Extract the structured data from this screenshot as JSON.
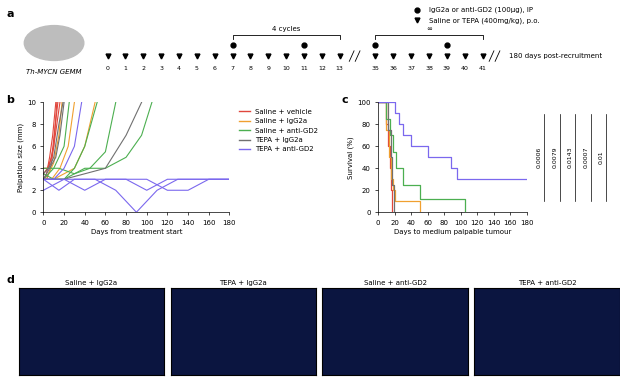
{
  "schematic": {
    "panel_label": "a",
    "model": "Th-MYCN GEMM",
    "cycle_label": "4 cycles",
    "repeat_label": "∞",
    "antibody_legend": "IgG2a or anti-GD2 (100µg), IP",
    "drug_legend": "Saline or TEPA (400mg/kg), p.o.",
    "drug_days_cycle": [
      0,
      1,
      2,
      3,
      4,
      5,
      6,
      7,
      8,
      9,
      10,
      11,
      12,
      13
    ],
    "drug_days_repeat": [
      35,
      36,
      37,
      38,
      39,
      40,
      41
    ],
    "antibody_days": [
      7,
      11,
      35,
      39
    ],
    "end_label": "180 days post-recruitment"
  },
  "chart_data": [
    {
      "type": "line",
      "panel_label": "b",
      "x_label": "Days from treatment start",
      "y_label": "Palpation size (mm)",
      "xlim": [
        0,
        180
      ],
      "xticks": [
        0,
        20,
        40,
        60,
        80,
        100,
        120,
        140,
        160,
        180
      ],
      "ylim": [
        0,
        10
      ],
      "yticks": [
        0,
        2,
        4,
        6,
        8,
        10
      ],
      "legend": "upper left",
      "series": [
        {
          "name": "Saline + vehicle",
          "color": "#e0463c",
          "mice": [
            {
              "x": [
                0,
                3,
                6,
                9,
                12
              ],
              "values": [
                3,
                3.5,
                5,
                7,
                10
              ]
            },
            {
              "x": [
                0,
                4,
                8,
                11,
                14
              ],
              "values": [
                3.5,
                4,
                5,
                7.5,
                10
              ]
            },
            {
              "x": [
                0,
                5,
                10,
                13,
                16
              ],
              "values": [
                4,
                4,
                6,
                8,
                10
              ]
            },
            {
              "x": [
                0,
                3,
                7,
                10,
                13
              ],
              "values": [
                3,
                3,
                4,
                6,
                10
              ]
            }
          ]
        },
        {
          "name": "Saline + IgG2a",
          "color": "#f0a030",
          "mice": [
            {
              "x": [
                0,
                5,
                10,
                15,
                18
              ],
              "values": [
                3,
                3.5,
                4.5,
                7,
                10
              ]
            },
            {
              "x": [
                0,
                8,
                16,
                24,
                30
              ],
              "values": [
                3,
                3,
                4,
                6,
                10
              ]
            },
            {
              "x": [
                0,
                10,
                20,
                30,
                40,
                50
              ],
              "values": [
                3,
                3,
                3.5,
                4,
                6,
                10
              ]
            }
          ]
        },
        {
          "name": "Saline + anti-GD2",
          "color": "#4caf50",
          "mice": [
            {
              "x": [
                0,
                10,
                20,
                30,
                40,
                52
              ],
              "values": [
                3.5,
                3,
                3,
                4,
                6,
                10
              ]
            },
            {
              "x": [
                0,
                15,
                30,
                45,
                60,
                70
              ],
              "values": [
                4,
                4,
                3.5,
                4,
                5.5,
                10
              ]
            },
            {
              "x": [
                0,
                20,
                40,
                60,
                80,
                95,
                105
              ],
              "values": [
                3,
                3,
                4,
                4,
                5,
                7,
                10
              ]
            },
            {
              "x": [
                0,
                10,
                20,
                25
              ],
              "values": [
                3,
                4,
                6,
                10
              ]
            }
          ]
        },
        {
          "name": "TEPA + IgG2a",
          "color": "#707070",
          "mice": [
            {
              "x": [
                0,
                5,
                10,
                15,
                19
              ],
              "values": [
                3.5,
                4,
                5,
                8,
                10
              ]
            },
            {
              "x": [
                0,
                6,
                12,
                16,
                20
              ],
              "values": [
                3,
                4,
                5,
                7,
                10
              ]
            },
            {
              "x": [
                0,
                20,
                40,
                60,
                80,
                95
              ],
              "values": [
                3,
                3,
                3.5,
                4,
                7,
                10
              ]
            }
          ]
        },
        {
          "name": "TEPA + anti-GD2",
          "color": "#7b68ee",
          "mice": [
            {
              "x": [
                0,
                20,
                40,
                60,
                80,
                100,
                120,
                140,
                160,
                180
              ],
              "values": [
                3,
                3,
                2,
                3,
                3,
                2,
                3,
                3,
                3,
                3
              ]
            },
            {
              "x": [
                0,
                15,
                30,
                50,
                70,
                90,
                110,
                130,
                150,
                180
              ],
              "values": [
                3,
                2,
                3,
                3,
                2,
                0,
                2,
                3,
                3,
                3
              ]
            },
            {
              "x": [
                0,
                10,
                20,
                30,
                37
              ],
              "values": [
                3,
                3,
                4,
                6,
                10
              ]
            },
            {
              "x": [
                0,
                20,
                40,
                60,
                80,
                100,
                120,
                140,
                160,
                180
              ],
              "values": [
                2,
                3,
                3,
                3,
                3,
                3,
                2,
                2,
                3,
                3
              ]
            }
          ]
        }
      ]
    },
    {
      "type": "step",
      "panel_label": "c",
      "x_label": "Days to medium palpable tumour",
      "y_label": "Survival (%)",
      "xlim": [
        0,
        180
      ],
      "xticks": [
        0,
        20,
        40,
        60,
        80,
        100,
        120,
        140,
        160,
        180
      ],
      "ylim": [
        0,
        100
      ],
      "yticks": [
        0,
        20,
        40,
        60,
        80,
        100
      ],
      "annotations": [
        "0.0006",
        "0.0079",
        "0.0143",
        "0.0007",
        "0.01"
      ],
      "series": [
        {
          "name": "Saline + vehicle",
          "color": "#e0463c",
          "x": [
            0,
            10,
            12,
            14,
            16,
            17
          ],
          "values": [
            100,
            80,
            60,
            40,
            20,
            0
          ]
        },
        {
          "name": "Saline + IgG2a",
          "color": "#f0a030",
          "x": [
            0,
            10,
            13,
            15,
            18,
            20,
            50
          ],
          "values": [
            100,
            75,
            50,
            30,
            20,
            10,
            0
          ]
        },
        {
          "name": "Saline + anti-GD2",
          "color": "#4caf50",
          "x": [
            0,
            10,
            14,
            18,
            22,
            30,
            50,
            105
          ],
          "values": [
            100,
            85,
            70,
            55,
            40,
            25,
            12,
            0
          ]
        },
        {
          "name": "TEPA + IgG2a",
          "color": "#707070",
          "x": [
            0,
            12,
            15,
            17,
            19
          ],
          "values": [
            100,
            75,
            50,
            25,
            0
          ]
        },
        {
          "name": "TEPA + anti-GD2",
          "color": "#7b68ee",
          "x": [
            0,
            20,
            25,
            30,
            40,
            60,
            88,
            95,
            180
          ],
          "values": [
            100,
            90,
            80,
            70,
            60,
            50,
            40,
            30,
            30
          ]
        }
      ]
    }
  ],
  "images": {
    "panel_label": "d",
    "titles": [
      "Saline + IgG2a",
      "TEPA + IgG2a",
      "Saline + anti-GD2",
      "TEPA + anti-GD2"
    ]
  }
}
